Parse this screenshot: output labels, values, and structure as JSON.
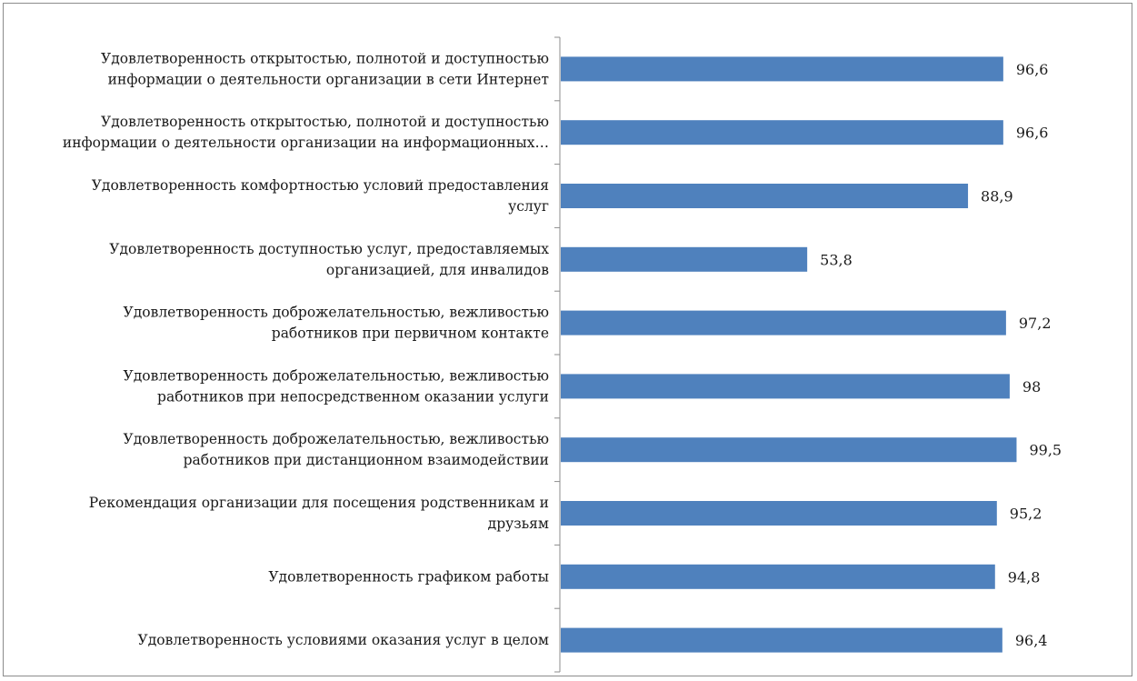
{
  "chart_data": {
    "type": "bar",
    "orientation": "horizontal",
    "categories": [
      [
        "Удовлетворенность открытостью, полнотой и доступностью",
        "информации о деятельности организации в сети Интернет"
      ],
      [
        "Удовлетворенность открытостью, полнотой и доступностью",
        "информации о деятельности организации на информационных…"
      ],
      [
        "Удовлетворенность комфортностью условий предоставления",
        "услуг"
      ],
      [
        "Удовлетворенность доступностью услуг,  предоставляемых",
        "организацией, для инвалидов"
      ],
      [
        "Удовлетворенность доброжелательностью, вежливостью",
        "работников при первичном контакте"
      ],
      [
        "Удовлетворенность доброжелательностью, вежливостью",
        "работников при непосредственном оказании услуги"
      ],
      [
        "Удовлетворенность доброжелательностью, вежливостью",
        "работников при дистанционном взаимодействии"
      ],
      [
        "Рекомендация организации для посещения родственникам и",
        "друзьям"
      ],
      [
        "Удовлетворенность графиком работы"
      ],
      [
        "Удовлетворенность условиями оказания услуг в целом"
      ]
    ],
    "values": [
      96.6,
      96.6,
      88.9,
      53.8,
      97.2,
      98,
      99.5,
      95.2,
      94.8,
      96.4
    ],
    "value_labels": [
      "96,6",
      "96,6",
      "88,9",
      "53,8",
      "97,2",
      "98",
      "99,5",
      "95,2",
      "94,8",
      "96,4"
    ],
    "xlim": [
      0,
      100
    ],
    "grid": false,
    "legend": "none",
    "bar_color": "#4f81bd",
    "axis_color": "#8c8c8c"
  }
}
